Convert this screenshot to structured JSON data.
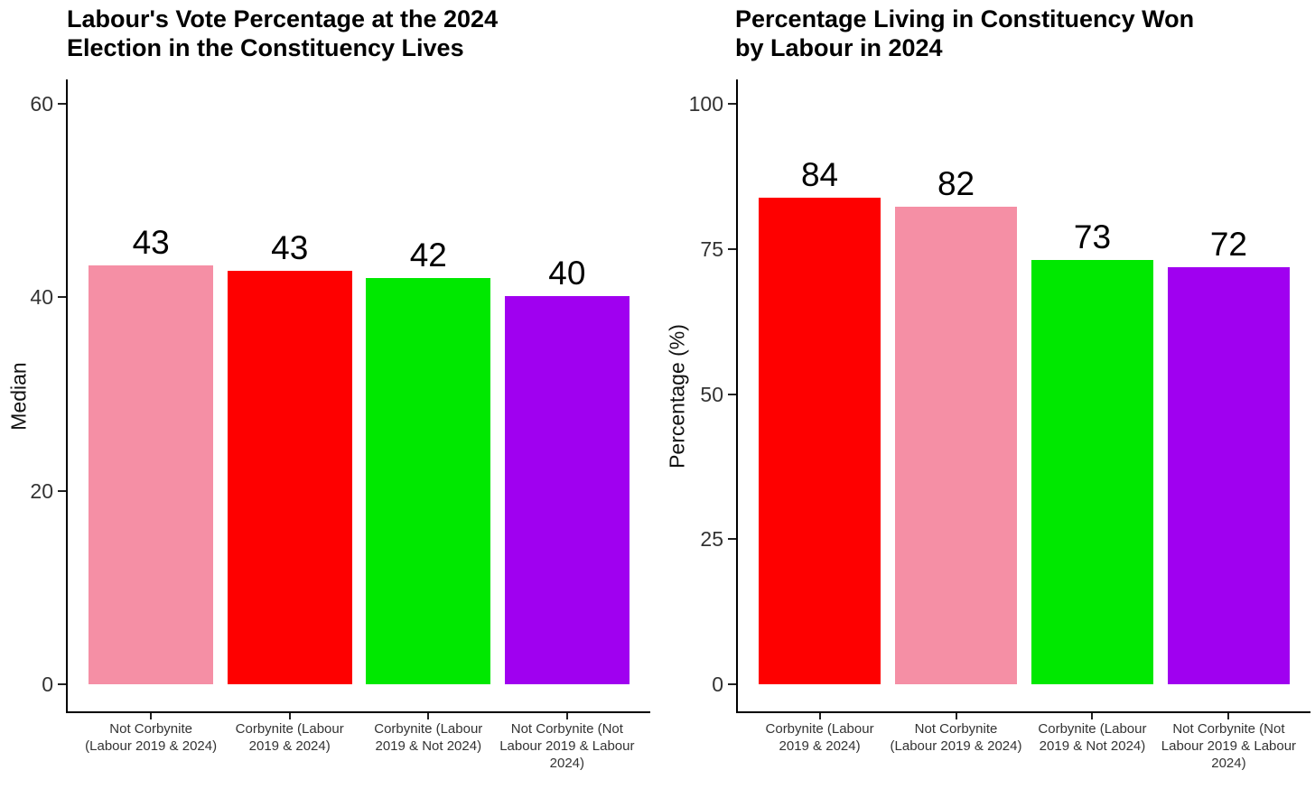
{
  "figure": {
    "background": "#ffffff",
    "axis_color": "#000000",
    "text_color": "#000000",
    "tick_text_color": "#333333"
  },
  "chart_data": [
    {
      "type": "bar",
      "title": "Labour's Vote Percentage at the 2024 Election in the Constituency Lives",
      "title_lines": [
        "Labour's Vote Percentage at the 2024",
        "Election in the Constituency Lives"
      ],
      "xlabel": "",
      "ylabel": "Median",
      "yticks": [
        0,
        20,
        40,
        60
      ],
      "ylim": [
        0,
        63
      ],
      "grid": false,
      "legend": "none",
      "categories": [
        "Not Corbynite (Labour 2019 & 2024)",
        "Corbynite (Labour 2019 & 2024)",
        "Corbynite (Labour 2019 & Not 2024)",
        "Not Corbynite (Not Labour 2019 & Labour 2024)"
      ],
      "category_lines": [
        [
          "Not Corbynite",
          "(Labour 2019 & 2024)"
        ],
        [
          "Corbynite (Labour",
          "2019 & 2024)"
        ],
        [
          "Corbynite (Labour",
          "2019 & Not 2024)"
        ],
        [
          "Not Corbynite (Not",
          "Labour 2019 & Labour",
          "2024)"
        ]
      ],
      "values": [
        43.3,
        42.7,
        42.0,
        40.1
      ],
      "value_labels": [
        "43",
        "43",
        "42",
        "40"
      ],
      "bar_colors": [
        "#F58FA5",
        "#FE0000",
        "#00E800",
        "#A000F0"
      ]
    },
    {
      "type": "bar",
      "title": "Percentage Living in Constituency Won by Labour in 2024",
      "title_lines": [
        "Percentage Living in Constituency Won",
        "by Labour in 2024"
      ],
      "xlabel": "",
      "ylabel": "Percentage (%)",
      "yticks": [
        0,
        25,
        50,
        75,
        100
      ],
      "ylim": [
        0,
        104
      ],
      "grid": false,
      "legend": "none",
      "categories": [
        "Corbynite (Labour 2019 & 2024)",
        "Not Corbynite (Labour 2019 & 2024)",
        "Corbynite (Labour 2019 & Not 2024)",
        "Not Corbynite (Not Labour 2019 & Labour 2024)"
      ],
      "category_lines": [
        [
          "Corbynite (Labour",
          "2019 & 2024)"
        ],
        [
          "Not Corbynite",
          "(Labour 2019 & 2024)"
        ],
        [
          "Corbynite (Labour",
          "2019 & Not 2024)"
        ],
        [
          "Not Corbynite (Not",
          "Labour 2019 & Labour",
          "2024)"
        ]
      ],
      "values": [
        83.9,
        82.3,
        73.1,
        71.9
      ],
      "value_labels": [
        "84",
        "82",
        "73",
        "72"
      ],
      "bar_colors": [
        "#FE0000",
        "#F58FA5",
        "#00E800",
        "#A000F0"
      ]
    }
  ]
}
